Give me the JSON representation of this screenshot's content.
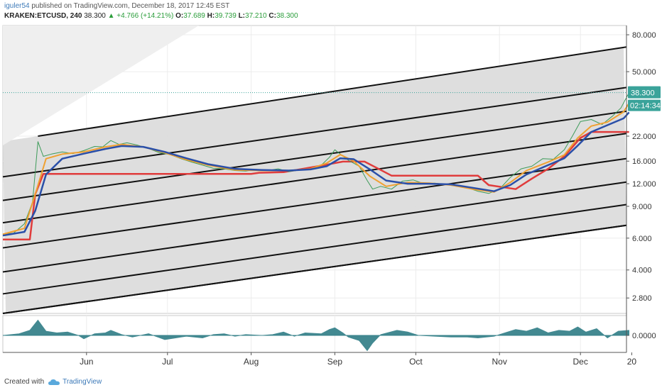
{
  "header": {
    "author": "iguler54",
    "published": "published on TradingView.com, December 18, 2017 12:45 EST",
    "symbol": "KRAKEN:ETCUSD, 240",
    "last": "38.300",
    "change": "▲ +4.766 (+14.21%)",
    "open_label": "O:",
    "open": "37.689",
    "high_label": "H:",
    "high": "39.739",
    "low_label": "L:",
    "low": "37.210",
    "close_label": "C:",
    "close": "38.300"
  },
  "price_badge": "38.300",
  "countdown_badge": "02:14:34",
  "oscillator_label": "0.0000",
  "footer": {
    "created_with": "Created with",
    "brand": "TradingView"
  },
  "chart_data": {
    "type": "line",
    "y_scale": "log",
    "y_ticks": [
      "80.000",
      "50.000",
      "38.300",
      "22.000",
      "16.000",
      "12.000",
      "9.000",
      "6.000",
      "4.000",
      "2.800"
    ],
    "y_tick_values": [
      80,
      50,
      38.3,
      22,
      16,
      12,
      9,
      6,
      4,
      2.8
    ],
    "x_ticks": [
      "Jun",
      "Jul",
      "Aug",
      "Sep",
      "Oct",
      "Nov",
      "Dec",
      "20"
    ],
    "x_tick_days": [
      31,
      61,
      92,
      123,
      153,
      184,
      214,
      233
    ],
    "last_price": 38.3,
    "price_series": [
      [
        0,
        6.3
      ],
      [
        4,
        6.4
      ],
      [
        8,
        7.2
      ],
      [
        11,
        9.5
      ],
      [
        13,
        20.5
      ],
      [
        15,
        17.0
      ],
      [
        18,
        17.5
      ],
      [
        22,
        18.0
      ],
      [
        26,
        17.6
      ],
      [
        30,
        18.3
      ],
      [
        34,
        19.3
      ],
      [
        37,
        19.2
      ],
      [
        40,
        20.8
      ],
      [
        43,
        19.8
      ],
      [
        46,
        20.2
      ],
      [
        50,
        19.6
      ],
      [
        54,
        18.8
      ],
      [
        58,
        17.8
      ],
      [
        62,
        17.4
      ],
      [
        66,
        16.5
      ],
      [
        70,
        15.8
      ],
      [
        74,
        15.2
      ],
      [
        78,
        14.6
      ],
      [
        82,
        14.5
      ],
      [
        86,
        14.2
      ],
      [
        90,
        14.1
      ],
      [
        94,
        14.4
      ],
      [
        98,
        14.2
      ],
      [
        102,
        14.5
      ],
      [
        106,
        14.0
      ],
      [
        110,
        14.3
      ],
      [
        114,
        14.5
      ],
      [
        118,
        15.2
      ],
      [
        121,
        16.8
      ],
      [
        123,
        18.5
      ],
      [
        125,
        17.5
      ],
      [
        128,
        16.2
      ],
      [
        132,
        15.0
      ],
      [
        135,
        12.5
      ],
      [
        137,
        11.2
      ],
      [
        140,
        11.6
      ],
      [
        144,
        11.2
      ],
      [
        148,
        12.4
      ],
      [
        152,
        12.6
      ],
      [
        156,
        12.0
      ],
      [
        160,
        12.1
      ],
      [
        164,
        11.9
      ],
      [
        168,
        11.6
      ],
      [
        172,
        11.4
      ],
      [
        176,
        10.9
      ],
      [
        180,
        10.6
      ],
      [
        184,
        11.2
      ],
      [
        188,
        13.0
      ],
      [
        192,
        14.5
      ],
      [
        196,
        15.0
      ],
      [
        200,
        16.5
      ],
      [
        204,
        16.4
      ],
      [
        208,
        18.5
      ],
      [
        211,
        22.0
      ],
      [
        214,
        26.5
      ],
      [
        218,
        27.2
      ],
      [
        222,
        25.5
      ],
      [
        226,
        28.5
      ],
      [
        229,
        31.5
      ],
      [
        232,
        38.3
      ]
    ],
    "ema_fast": [
      [
        0,
        6.3
      ],
      [
        8,
        6.8
      ],
      [
        12,
        10.5
      ],
      [
        16,
        16.5
      ],
      [
        22,
        17.5
      ],
      [
        30,
        18.0
      ],
      [
        38,
        19.2
      ],
      [
        44,
        19.8
      ],
      [
        52,
        19.2
      ],
      [
        60,
        17.8
      ],
      [
        68,
        16.3
      ],
      [
        76,
        15.2
      ],
      [
        86,
        14.3
      ],
      [
        96,
        14.2
      ],
      [
        106,
        14.2
      ],
      [
        114,
        14.5
      ],
      [
        120,
        15.6
      ],
      [
        125,
        17.4
      ],
      [
        130,
        16.0
      ],
      [
        136,
        13.2
      ],
      [
        142,
        11.6
      ],
      [
        150,
        12.2
      ],
      [
        158,
        12.1
      ],
      [
        166,
        11.8
      ],
      [
        174,
        11.2
      ],
      [
        182,
        10.8
      ],
      [
        188,
        12.2
      ],
      [
        194,
        14.2
      ],
      [
        202,
        15.8
      ],
      [
        208,
        17.3
      ],
      [
        213,
        21.5
      ],
      [
        218,
        25.0
      ],
      [
        224,
        26.3
      ],
      [
        230,
        30.0
      ],
      [
        232,
        33.5
      ]
    ],
    "ema_slow": [
      [
        0,
        6.2
      ],
      [
        8,
        6.5
      ],
      [
        12,
        8.5
      ],
      [
        16,
        13.5
      ],
      [
        22,
        16.5
      ],
      [
        30,
        17.6
      ],
      [
        38,
        18.7
      ],
      [
        44,
        19.4
      ],
      [
        52,
        19.2
      ],
      [
        60,
        18.0
      ],
      [
        68,
        16.6
      ],
      [
        76,
        15.4
      ],
      [
        86,
        14.5
      ],
      [
        96,
        14.3
      ],
      [
        106,
        14.2
      ],
      [
        114,
        14.4
      ],
      [
        120,
        15.0
      ],
      [
        125,
        16.6
      ],
      [
        130,
        16.4
      ],
      [
        136,
        14.4
      ],
      [
        142,
        12.5
      ],
      [
        150,
        12.0
      ],
      [
        158,
        12.0
      ],
      [
        166,
        11.9
      ],
      [
        174,
        11.4
      ],
      [
        182,
        10.9
      ],
      [
        188,
        11.8
      ],
      [
        194,
        13.5
      ],
      [
        202,
        15.2
      ],
      [
        208,
        16.6
      ],
      [
        213,
        19.5
      ],
      [
        218,
        23.2
      ],
      [
        224,
        25.3
      ],
      [
        230,
        27.6
      ],
      [
        232,
        29.8
      ]
    ],
    "trail_stop": [
      [
        0,
        5.9
      ],
      [
        10,
        5.9
      ],
      [
        12,
        10.5
      ],
      [
        15,
        13.6
      ],
      [
        62,
        13.6
      ],
      [
        92,
        13.6
      ],
      [
        95,
        13.8
      ],
      [
        104,
        13.9
      ],
      [
        110,
        14.4
      ],
      [
        120,
        15.3
      ],
      [
        126,
        15.9
      ],
      [
        134,
        15.9
      ],
      [
        140,
        14.3
      ],
      [
        144,
        13.3
      ],
      [
        176,
        13.3
      ],
      [
        180,
        11.8
      ],
      [
        190,
        11.2
      ],
      [
        196,
        12.8
      ],
      [
        202,
        14.5
      ],
      [
        208,
        17.0
      ],
      [
        214,
        21.5
      ],
      [
        218,
        23.2
      ],
      [
        232,
        23.2
      ]
    ],
    "channel_lines": [
      {
        "start": [
          13,
          22.0
        ],
        "end": [
          246,
          74.0
        ]
      },
      {
        "start": [
          0,
          13.1
        ],
        "end": [
          246,
          44.0
        ]
      },
      {
        "start": [
          0,
          9.7
        ],
        "end": [
          246,
          32.5
        ]
      },
      {
        "start": [
          0,
          7.3
        ],
        "end": [
          246,
          24.5
        ]
      },
      {
        "start": [
          0,
          5.3
        ],
        "end": [
          246,
          17.8
        ]
      },
      {
        "start": [
          0,
          3.9
        ],
        "end": [
          246,
          13.2
        ]
      },
      {
        "start": [
          0,
          2.95
        ],
        "end": [
          246,
          9.9
        ]
      },
      {
        "start": [
          0,
          2.3
        ],
        "end": [
          246,
          7.6
        ]
      },
      {
        "start": [
          0,
          2.3
        ],
        "end": [
          246,
          7.6
        ]
      }
    ],
    "oscillator": {
      "zero": 0,
      "values": [
        [
          0,
          0.0
        ],
        [
          6,
          0.2
        ],
        [
          10,
          0.6
        ],
        [
          13,
          1.8
        ],
        [
          16,
          0.5
        ],
        [
          20,
          0.3
        ],
        [
          24,
          0.4
        ],
        [
          28,
          0.0
        ],
        [
          30,
          -0.4
        ],
        [
          34,
          0.2
        ],
        [
          38,
          0.3
        ],
        [
          40,
          0.6
        ],
        [
          44,
          0.1
        ],
        [
          48,
          -0.2
        ],
        [
          54,
          0.2
        ],
        [
          60,
          -0.5
        ],
        [
          64,
          -0.3
        ],
        [
          68,
          -0.1
        ],
        [
          74,
          -0.3
        ],
        [
          78,
          0.1
        ],
        [
          82,
          0.2
        ],
        [
          86,
          -0.1
        ],
        [
          90,
          0.1
        ],
        [
          96,
          0.0
        ],
        [
          100,
          0.1
        ],
        [
          104,
          0.4
        ],
        [
          108,
          -0.1
        ],
        [
          112,
          0.3
        ],
        [
          118,
          0.2
        ],
        [
          121,
          0.7
        ],
        [
          123,
          0.9
        ],
        [
          126,
          0.3
        ],
        [
          128,
          -0.2
        ],
        [
          132,
          -0.6
        ],
        [
          135,
          -1.8
        ],
        [
          137,
          -0.9
        ],
        [
          140,
          0.1
        ],
        [
          146,
          0.6
        ],
        [
          150,
          0.4
        ],
        [
          154,
          0.0
        ],
        [
          160,
          -0.1
        ],
        [
          166,
          -0.2
        ],
        [
          172,
          -0.2
        ],
        [
          176,
          -0.3
        ],
        [
          182,
          -0.1
        ],
        [
          186,
          0.3
        ],
        [
          190,
          0.7
        ],
        [
          194,
          0.5
        ],
        [
          198,
          0.9
        ],
        [
          202,
          0.3
        ],
        [
          206,
          0.6
        ],
        [
          210,
          0.5
        ],
        [
          213,
          1.0
        ],
        [
          216,
          0.4
        ],
        [
          220,
          0.8
        ],
        [
          224,
          -0.3
        ],
        [
          228,
          0.5
        ],
        [
          232,
          0.6
        ]
      ]
    }
  }
}
